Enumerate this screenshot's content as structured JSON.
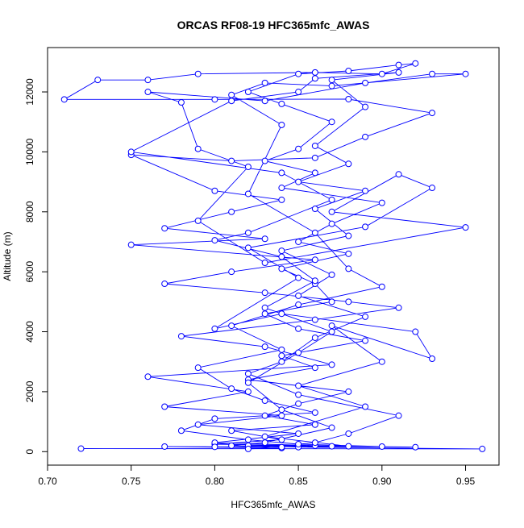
{
  "chart_data": {
    "type": "line-points",
    "title": "ORCAS RF08-19 HFC365mfc_AWAS",
    "xlabel": "HFC365mfc_AWAS",
    "ylabel": "Altitude (m)",
    "color": "#0000ff",
    "x": [
      0.72,
      0.96,
      0.85,
      0.82,
      0.87,
      0.8,
      0.84,
      0.81,
      0.86,
      0.83,
      0.85,
      0.88,
      0.82,
      0.86,
      0.84,
      0.89,
      0.85,
      0.83,
      0.87,
      0.86,
      0.84,
      0.88,
      0.85,
      0.87,
      0.9,
      0.84,
      0.86,
      0.83,
      0.85,
      0.87,
      0.84,
      0.82,
      0.85,
      0.88,
      0.91,
      0.92,
      0.9,
      0.86,
      0.79,
      0.76,
      0.73,
      0.71,
      0.8,
      0.88,
      0.93,
      0.89,
      0.86,
      0.81,
      0.75,
      0.8,
      0.84,
      0.81,
      0.77,
      0.83,
      0.75,
      0.86,
      0.81,
      0.77,
      0.83,
      0.88,
      0.91,
      0.86,
      0.78,
      0.83,
      0.87,
      0.76,
      0.82,
      0.77,
      0.84,
      0.79,
      0.85,
      0.8,
      0.86,
      0.92,
      0.88,
      0.83,
      0.89,
      0.85,
      0.9,
      0.87,
      0.93,
      0.92,
      0.84,
      0.8,
      0.85,
      0.82,
      0.89,
      0.93,
      0.91,
      0.87,
      0.95,
      0.83,
      0.79,
      0.82,
      0.79,
      0.78,
      0.76,
      0.83,
      0.89,
      0.93,
      0.95,
      0.87,
      0.83,
      0.81,
      0.84,
      0.82,
      0.86,
      0.88,
      0.9,
      0.85,
      0.81,
      0.84,
      0.79,
      0.81,
      0.83,
      0.86,
      0.8,
      0.78,
      0.82,
      0.85,
      0.9,
      0.8,
      0.77,
      0.84,
      0.82,
      0.86,
      0.88,
      0.91,
      0.85,
      0.82,
      0.84,
      0.86,
      0.89,
      0.85,
      0.87,
      0.84,
      0.88,
      0.86,
      0.89,
      0.85,
      0.88,
      0.86,
      0.89,
      0.87,
      0.91,
      0.86,
      0.85,
      0.81,
      0.75,
      0.84,
      0.87,
      0.82,
      0.8,
      0.84,
      0.86,
      0.83,
      0.87,
      0.85,
      0.82,
      0.84,
      0.87,
      0.83,
      0.81,
      0.84
    ],
    "values": [
      100,
      90,
      150,
      200,
      180,
      250,
      400,
      700,
      900,
      1200,
      1600,
      2000,
      2400,
      2800,
      3200,
      3700,
      4100,
      4600,
      5000,
      5600,
      6100,
      6600,
      7000,
      7600,
      8300,
      8800,
      9300,
      9700,
      10100,
      11000,
      11600,
      12000,
      12600,
      12700,
      12900,
      12950,
      12600,
      12650,
      12600,
      12400,
      12400,
      11750,
      11750,
      11760,
      11300,
      10500,
      9800,
      9700,
      9900,
      8700,
      8400,
      8000,
      7450,
      7100,
      6900,
      6400,
      6000,
      5600,
      5300,
      5000,
      4800,
      4400,
      3850,
      3500,
      2900,
      2500,
      2000,
      1500,
      1200,
      900,
      600,
      300,
      200,
      150,
      180,
      500,
      1500,
      2200,
      3000,
      4200,
      3100,
      4000,
      4600,
      4100,
      5800,
      6800,
      7500,
      8800,
      9250,
      8000,
      7480,
      6300,
      7700,
      9500,
      10100,
      11650,
      12000,
      11700,
      12300,
      12600,
      12600,
      12200,
      12300,
      11900,
      10900,
      8600,
      7300,
      6100,
      5500,
      4900,
      4200,
      3400,
      2800,
      2100,
      1700,
      1300,
      1100,
      700,
      400,
      250,
      170,
      160,
      170,
      120,
      90,
      300,
      600,
      1200,
      1900,
      2600,
      3000,
      3800,
      4500,
      5200,
      5900,
      6700,
      7200,
      8100,
      8700,
      9000,
      9600,
      10200,
      11500,
      12400,
      12650,
      12450,
      12000,
      11700,
      10000,
      9300,
      8400,
      7300,
      7050,
      6500,
      5700,
      4800,
      4000,
      3300,
      2300,
      1400,
      800,
      300,
      200,
      150
    ],
    "xlim": [
      0.7,
      0.97
    ],
    "ylim": [
      -450,
      13480
    ],
    "xticks": [
      {
        "value": 0.7,
        "label": "0.70"
      },
      {
        "value": 0.75,
        "label": "0.75"
      },
      {
        "value": 0.8,
        "label": "0.80"
      },
      {
        "value": 0.85,
        "label": "0.85"
      },
      {
        "value": 0.9,
        "label": "0.90"
      },
      {
        "value": 0.95,
        "label": "0.95"
      }
    ],
    "yticks": [
      0,
      2000,
      4000,
      6000,
      8000,
      10000,
      12000
    ]
  }
}
